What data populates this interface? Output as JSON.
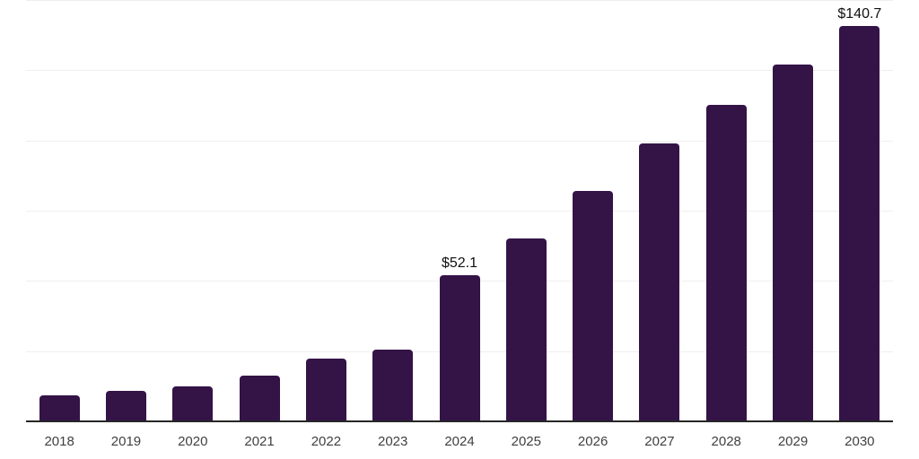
{
  "chart_data": {
    "type": "bar",
    "title": "",
    "xlabel": "",
    "ylabel": "",
    "categories": [
      "2018",
      "2019",
      "2020",
      "2021",
      "2022",
      "2023",
      "2024",
      "2025",
      "2026",
      "2027",
      "2028",
      "2029",
      "2030"
    ],
    "values": [
      9.3,
      11.0,
      12.3,
      16.3,
      22.5,
      25.4,
      52.1,
      65.0,
      82.1,
      99.1,
      112.8,
      127.1,
      140.7
    ],
    "value_labels": [
      "",
      "",
      "",
      "",
      "",
      "",
      "$52.1",
      "",
      "",
      "",
      "",
      "",
      "$140.7"
    ],
    "ylim": [
      0,
      150
    ],
    "grid_interval": 25,
    "grid": true,
    "legend": false,
    "colors": {
      "bar": "#341347",
      "gridline": "#efefef",
      "axis_line": "#262626",
      "tick_label": "#404040",
      "value_label": "#111111",
      "background": "#ffffff"
    }
  }
}
